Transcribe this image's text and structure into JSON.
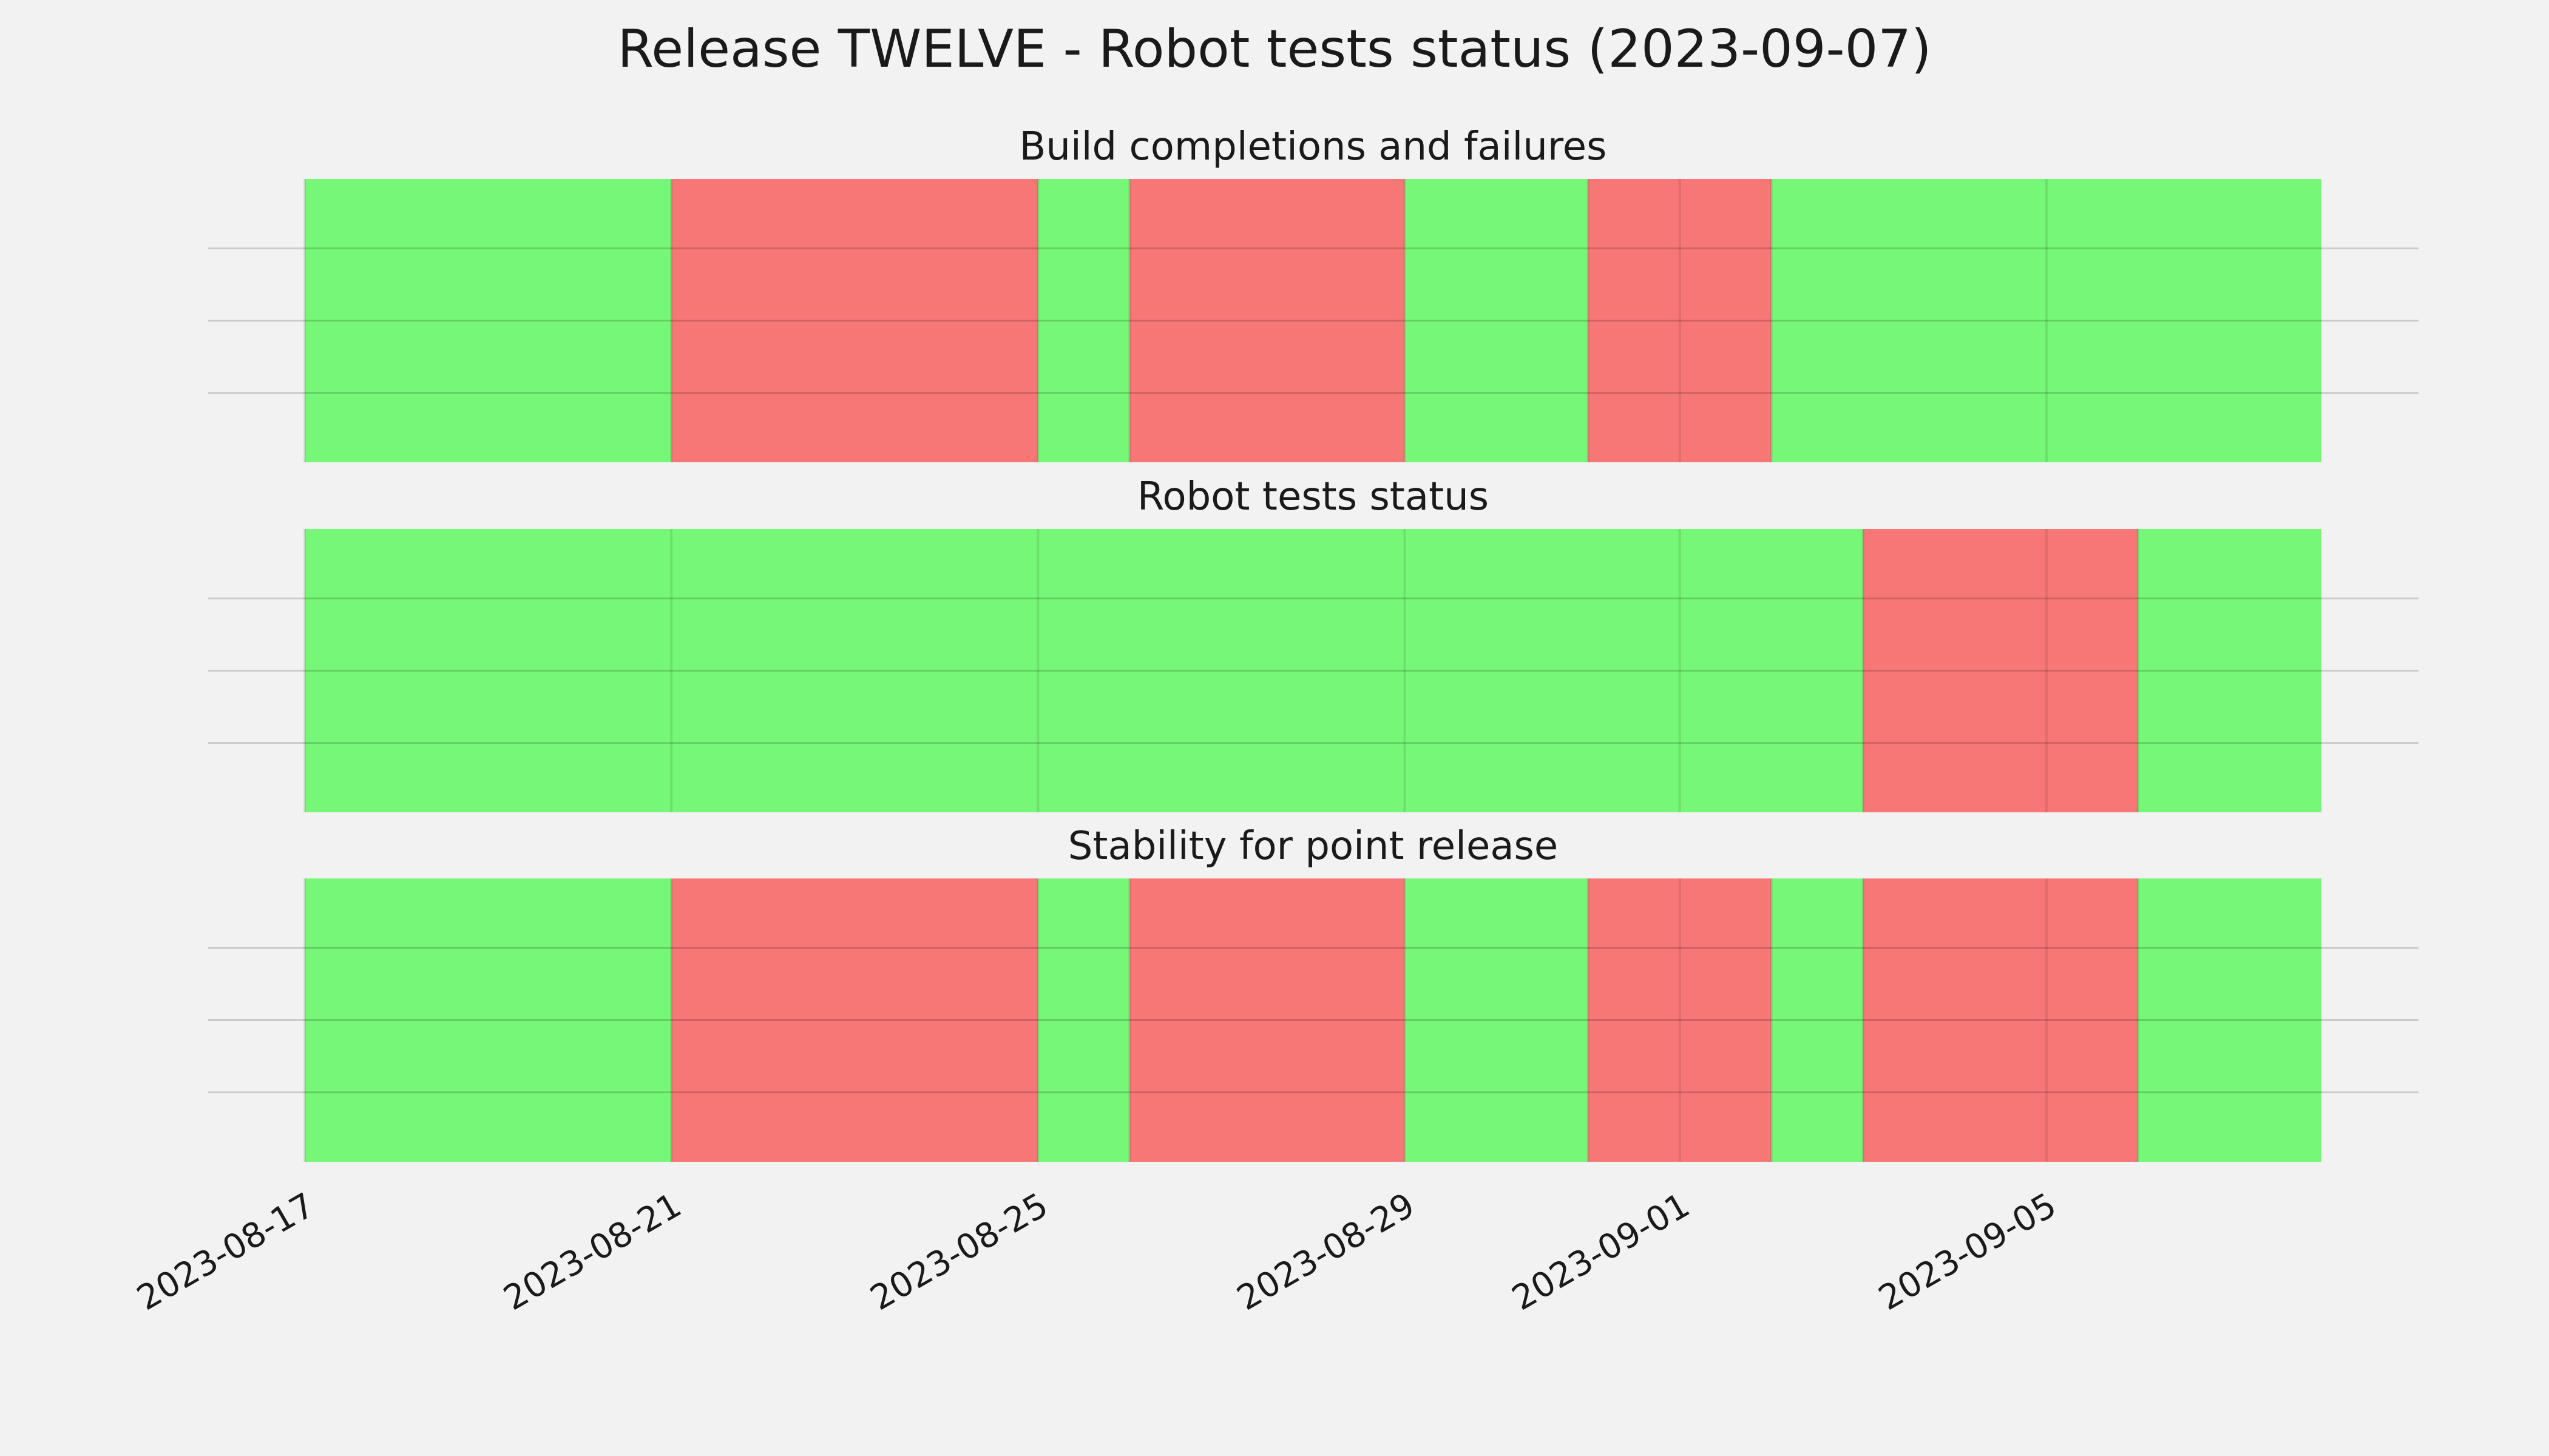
{
  "chart_data": {
    "type": "timeline",
    "title": "Release TWELVE - Robot tests status (2023-09-07)",
    "x_range": [
      "2023-08-17",
      "2023-09-08"
    ],
    "x_ticks": [
      "2023-08-17",
      "2023-08-21",
      "2023-08-25",
      "2023-08-29",
      "2023-09-01",
      "2023-09-05"
    ],
    "colors": {
      "success": "#77f777",
      "failure": "#f77777",
      "background": "#f2f2f2",
      "grid": "#cbcbcb"
    },
    "panels": [
      {
        "title": "Build completions and failures",
        "segments": [
          {
            "start": "2023-08-17",
            "end": "2023-08-21",
            "status": "success"
          },
          {
            "start": "2023-08-21",
            "end": "2023-08-25",
            "status": "failure"
          },
          {
            "start": "2023-08-25",
            "end": "2023-08-26",
            "status": "success"
          },
          {
            "start": "2023-08-26",
            "end": "2023-08-29",
            "status": "failure"
          },
          {
            "start": "2023-08-29",
            "end": "2023-08-31",
            "status": "success"
          },
          {
            "start": "2023-08-31",
            "end": "2023-09-02",
            "status": "failure"
          },
          {
            "start": "2023-09-02",
            "end": "2023-09-08",
            "status": "success"
          }
        ]
      },
      {
        "title": "Robot tests status",
        "segments": [
          {
            "start": "2023-08-17",
            "end": "2023-09-03",
            "status": "success"
          },
          {
            "start": "2023-09-03",
            "end": "2023-09-06",
            "status": "failure"
          },
          {
            "start": "2023-09-06",
            "end": "2023-09-08",
            "status": "success"
          }
        ]
      },
      {
        "title": "Stability for point release",
        "segments": [
          {
            "start": "2023-08-17",
            "end": "2023-08-21",
            "status": "success"
          },
          {
            "start": "2023-08-21",
            "end": "2023-08-25",
            "status": "failure"
          },
          {
            "start": "2023-08-25",
            "end": "2023-08-26",
            "status": "success"
          },
          {
            "start": "2023-08-26",
            "end": "2023-08-29",
            "status": "failure"
          },
          {
            "start": "2023-08-29",
            "end": "2023-08-31",
            "status": "success"
          },
          {
            "start": "2023-08-31",
            "end": "2023-09-02",
            "status": "failure"
          },
          {
            "start": "2023-09-02",
            "end": "2023-09-03",
            "status": "success"
          },
          {
            "start": "2023-09-03",
            "end": "2023-09-06",
            "status": "failure"
          },
          {
            "start": "2023-09-06",
            "end": "2023-09-08",
            "status": "success"
          }
        ]
      }
    ]
  }
}
